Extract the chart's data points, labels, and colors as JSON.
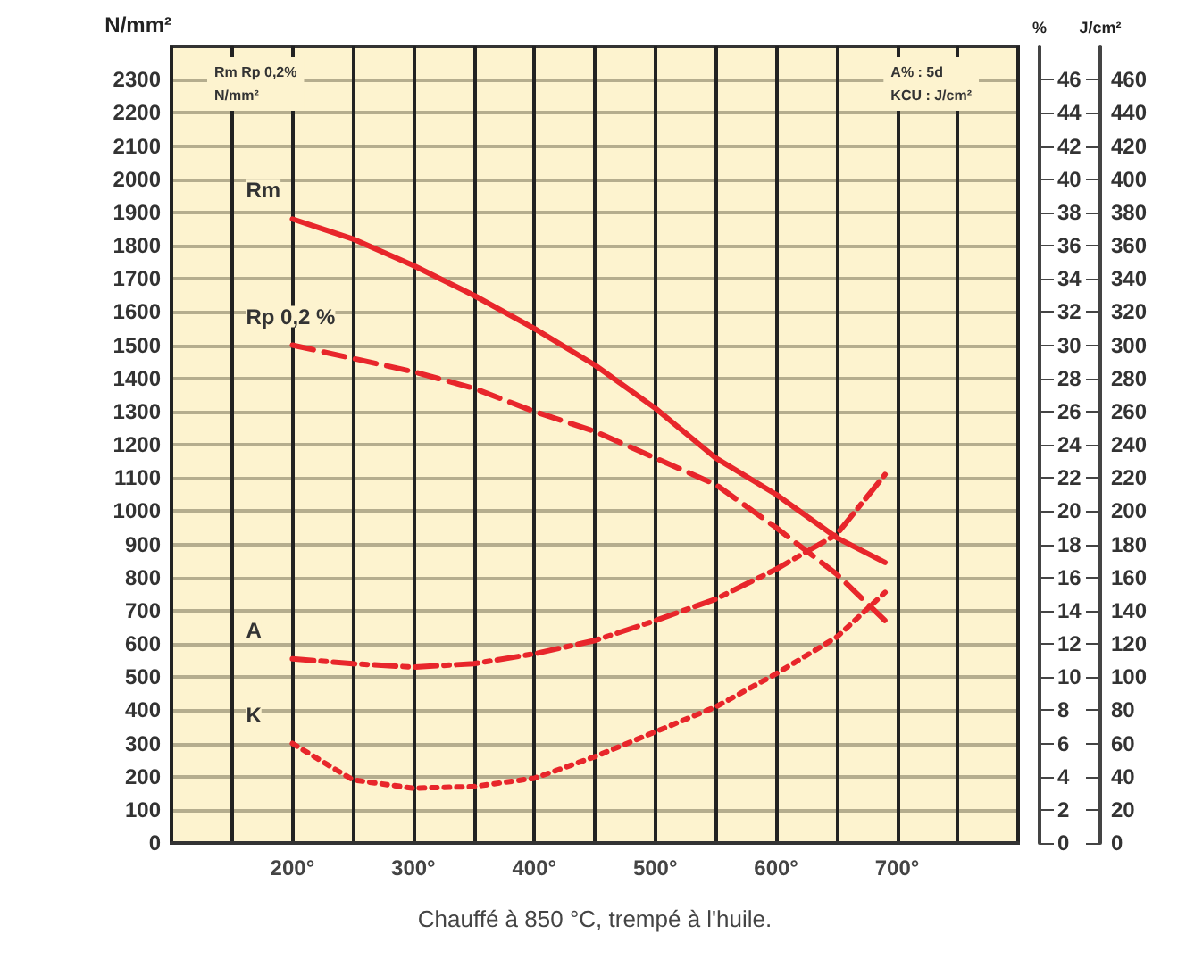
{
  "chart_data": {
    "type": "line",
    "xlabel": "Chauffé à 850 °C, trempé à l'huile.",
    "ylabel": "N/mm²",
    "y2label": "%",
    "y3label": "J/cm²",
    "annotations": [
      "Rm Rp 0,2%\nN/mm²",
      "A% : 5d\nKCU : J/cm²"
    ],
    "x": [
      200,
      250,
      300,
      350,
      400,
      450,
      500,
      550,
      600,
      650,
      690
    ],
    "series": [
      {
        "name": "Rm",
        "color": "#e8262b",
        "line_style": "solid",
        "values": [
          1880,
          1820,
          1740,
          1650,
          1550,
          1440,
          1310,
          1160,
          1050,
          920,
          845
        ]
      },
      {
        "name": "Rp 0,2 %",
        "color": "#e8262b",
        "line_style": "dashed",
        "values": [
          1500,
          1460,
          1420,
          1370,
          1300,
          1240,
          1160,
          1080,
          950,
          810,
          670
        ]
      },
      {
        "name": "A",
        "color": "#e8262b",
        "line_style": "dashdot",
        "axis": "y2",
        "values": [
          11.1,
          10.8,
          10.6,
          10.8,
          11.4,
          12.2,
          13.4,
          14.7,
          16.5,
          18.6,
          22.2
        ]
      },
      {
        "name": "K",
        "color": "#e8262b",
        "line_style": "dotted",
        "axis": "y3",
        "values": [
          60,
          38,
          33,
          34,
          39,
          52,
          67,
          82,
          102,
          124,
          151
        ]
      }
    ],
    "xlim": [
      100,
      800
    ],
    "xticks": [
      {
        "value": 100,
        "label": null
      },
      {
        "value": 150,
        "label": null
      },
      {
        "value": 200,
        "label": "200°"
      },
      {
        "value": 250,
        "label": null
      },
      {
        "value": 300,
        "label": "300°"
      },
      {
        "value": 350,
        "label": null
      },
      {
        "value": 400,
        "label": "400°"
      },
      {
        "value": 450,
        "label": null
      },
      {
        "value": 500,
        "label": "500°"
      },
      {
        "value": 550,
        "label": null
      },
      {
        "value": 600,
        "label": "600°"
      },
      {
        "value": 650,
        "label": null
      },
      {
        "value": 700,
        "label": "700°"
      },
      {
        "value": 750,
        "label": null
      },
      {
        "value": 800,
        "label": null
      }
    ],
    "ylim": [
      0,
      2400
    ],
    "yticks": [
      0,
      100,
      200,
      300,
      400,
      500,
      600,
      700,
      800,
      900,
      1000,
      1100,
      1200,
      1300,
      1400,
      1500,
      1600,
      1700,
      1800,
      1900,
      2000,
      2100,
      2200,
      2300
    ],
    "y2lim": [
      0,
      48
    ],
    "y2ticks": [
      0,
      2,
      4,
      6,
      8,
      10,
      12,
      14,
      16,
      18,
      20,
      22,
      24,
      26,
      28,
      30,
      32,
      34,
      36,
      38,
      40,
      42,
      44,
      46
    ],
    "y3lim": [
      0,
      480
    ],
    "y3ticks": [
      0,
      20,
      40,
      60,
      80,
      100,
      120,
      140,
      160,
      180,
      200,
      220,
      240,
      260,
      280,
      300,
      320,
      340,
      360,
      380,
      400,
      420,
      440,
      460
    ],
    "grid": true,
    "legend": false,
    "marker": "none"
  }
}
